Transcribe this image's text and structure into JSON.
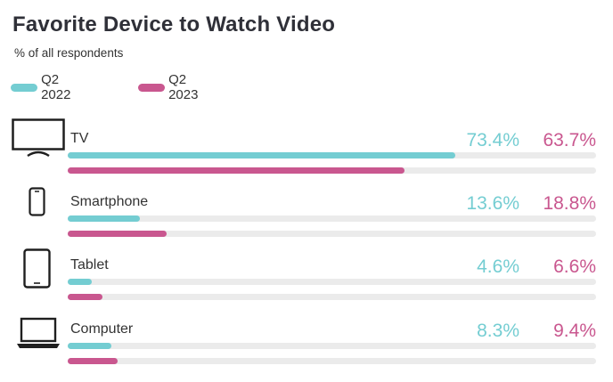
{
  "title": "Favorite Device to Watch Video",
  "subtitle": "% of all respondents",
  "colors": {
    "q2_2022": "#74cdd2",
    "q2_2023": "#c9578f",
    "track": "#ebebeb"
  },
  "chart_data": {
    "type": "bar",
    "orientation": "horizontal",
    "title": "Favorite Device to Watch Video",
    "subtitle": "% of all respondents",
    "categories": [
      "TV",
      "Smartphone",
      "Tablet",
      "Computer"
    ],
    "category_icons": [
      "tv-icon",
      "smartphone-icon",
      "tablet-icon",
      "laptop-icon"
    ],
    "series": [
      {
        "name": "Q2 2022",
        "values": [
          73.4,
          13.6,
          4.6,
          8.3
        ],
        "labels": [
          "73.4%",
          "13.6%",
          "4.6%",
          "8.3%"
        ],
        "color": "#74cdd2"
      },
      {
        "name": "Q2 2023",
        "values": [
          63.7,
          18.8,
          6.6,
          9.4
        ],
        "labels": [
          "63.7%",
          "18.8%",
          "6.6%",
          "9.4%"
        ],
        "color": "#c9578f"
      }
    ],
    "xlim": [
      0,
      100
    ],
    "legend": "top-left",
    "grid": false
  }
}
